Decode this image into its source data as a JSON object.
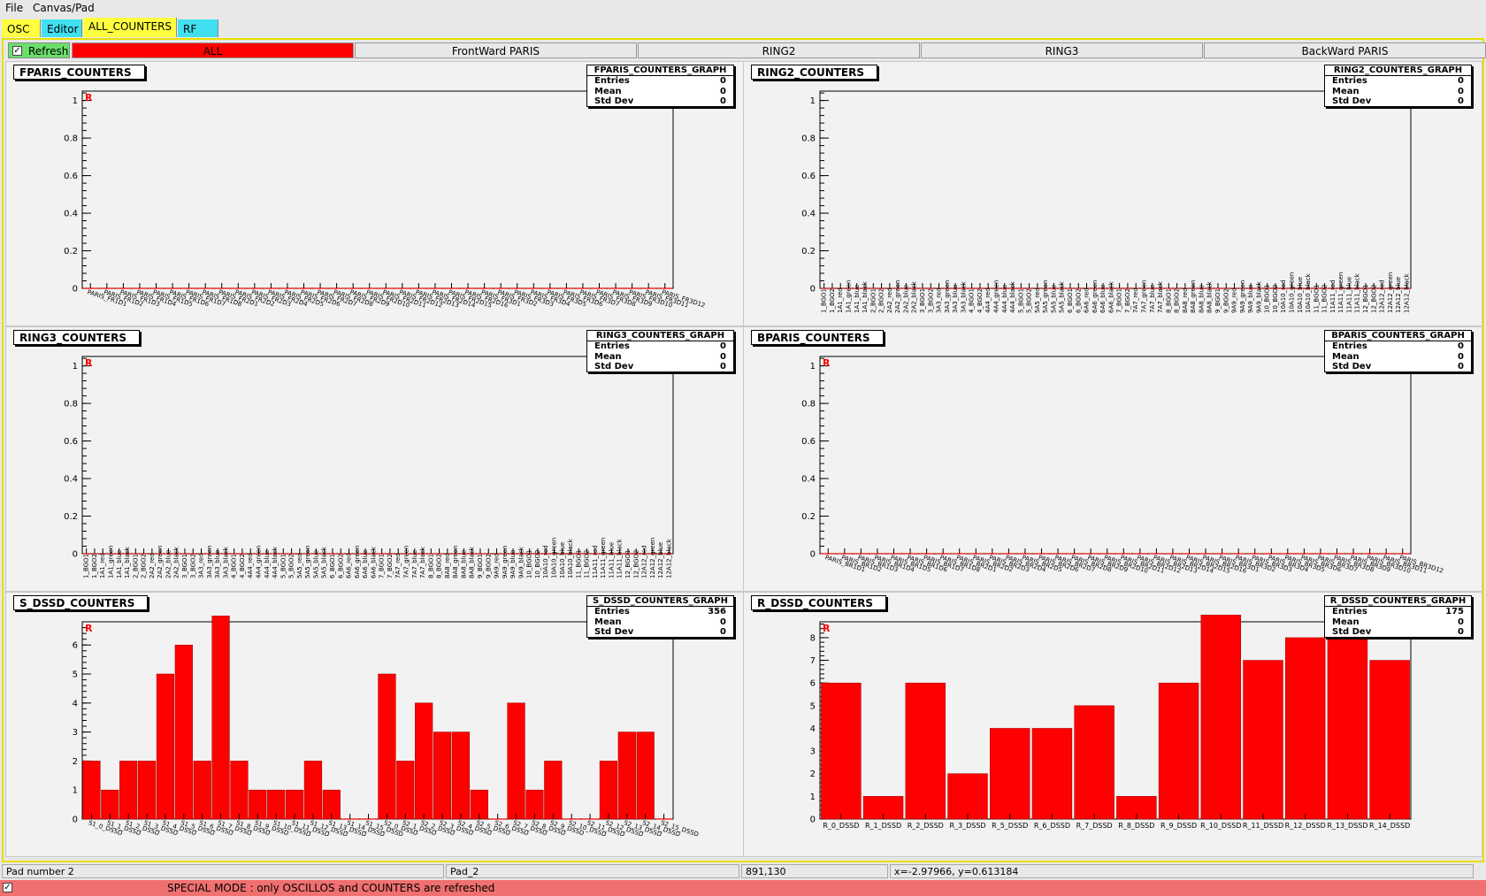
{
  "menu": {
    "file": "File",
    "canvas": "Canvas/Pad"
  },
  "top_tabs": [
    {
      "label": "OSC",
      "color": "#ffff40"
    },
    {
      "label": "Editor",
      "color": "#40e0f0"
    },
    {
      "label": "ALL_COUNTERS",
      "color": "#ffff40"
    },
    {
      "label": "RF",
      "color": "#40e0f0"
    }
  ],
  "refresh": {
    "label": "Refresh",
    "checked": "✓"
  },
  "sub_tabs": [
    "ALL",
    "FrontWard PARIS",
    "RING2",
    "RING3",
    "BackWard PARIS"
  ],
  "status": {
    "pad": "Pad number 2",
    "name": "Pad_2",
    "pixel": "891,130",
    "coords": "x=-2.97966, y=0.613184"
  },
  "special": {
    "checked": "✓",
    "message": "SPECIAL MODE : only OSCILLOS and COUNTERS are refreshed"
  },
  "colors": {
    "bar": "#ff0000",
    "bar_edge": "#b00000",
    "frame": "#e8e000",
    "status_special": "#f07070"
  },
  "stats_labels": {
    "entries": "Entries",
    "mean": "Mean",
    "std": "Std Dev"
  },
  "chart_data": [
    {
      "type": "bar",
      "title": "FPARIS_COUNTERS",
      "stats_name": "FPARIS_COUNTERS_GRAPH",
      "entries": "0",
      "mean": "0",
      "std": "0",
      "ylim": [
        0,
        1.05
      ],
      "yticks": [
        "0",
        "0.2",
        "0.4",
        "0.6",
        "0.8",
        "1"
      ],
      "ytick_values": [
        0,
        0.2,
        0.4,
        0.6,
        0.8,
        1
      ],
      "marker": "R",
      "categories": [
        "PARIS_FR1D1",
        "PARIS_FR1D2",
        "PARIS_FR1D3",
        "PARIS_FR1D4",
        "PARIS_FR1D5",
        "PARIS_FR1D6",
        "PARIS_FR1D7",
        "PARIS_FR1D8",
        "PARIS_FR2D1",
        "PARIS_FR2D2",
        "PARIS_FR2D3",
        "PARIS_FR2D4",
        "PARIS_FR2D5",
        "PARIS_FR2D6",
        "PARIS_FR2D7",
        "PARIS_FR2D8",
        "PARIS_FR2D9",
        "PARIS_FR2D10",
        "PARIS_FR2D11",
        "PARIS_FR2D12",
        "PARIS_FR2D13",
        "PARIS_FR2D14",
        "PARIS_FR2D15",
        "PARIS_FR2D16",
        "PARIS_FR3D1",
        "PARIS_FR3D2",
        "PARIS_FR3D3",
        "PARIS_FR3D4",
        "PARIS_FR3D5",
        "PARIS_FR3D6",
        "PARIS_FR3D7",
        "PARIS_FR3D8",
        "PARIS_FR3D9",
        "PARIS_FR3D10",
        "PARIS_FR3D11",
        "PARIS_FR3D12"
      ],
      "values": [
        0,
        0,
        0,
        0,
        0,
        0,
        0,
        0,
        0,
        0,
        0,
        0,
        0,
        0,
        0,
        0,
        0,
        0,
        0,
        0,
        0,
        0,
        0,
        0,
        0,
        0,
        0,
        0,
        0,
        0,
        0,
        0,
        0,
        0,
        0,
        0
      ]
    },
    {
      "type": "bar",
      "title": "RING2_COUNTERS",
      "stats_name": "RING2_COUNTERS_GRAPH",
      "entries": "0",
      "mean": "0",
      "std": "0",
      "ylim": [
        0,
        1.05
      ],
      "yticks": [
        "0",
        "0.2",
        "0.4",
        "0.6",
        "0.8",
        "1"
      ],
      "ytick_values": [
        0,
        0.2,
        0.4,
        0.6,
        0.8,
        1
      ],
      "marker": "",
      "categories": [
        "1_BGO1",
        "1_BGO2",
        "1A1_red",
        "1A1_green",
        "1A1_blue",
        "1A1_black",
        "2_BGO1",
        "2_BGO2",
        "2A2_red",
        "2A2_green",
        "2A2_blue",
        "2A2_black",
        "3_BGO1",
        "3_BGO2",
        "3A3_red",
        "3A3_green",
        "3A3_blue",
        "3A3_black",
        "4_BGO1",
        "4_BGO2",
        "4A4_red",
        "4A4_green",
        "4A4_blue",
        "4A4_black",
        "5_BGO1",
        "5_BGO2",
        "5A5_red",
        "5A5_green",
        "5A5_blue",
        "5A5_black",
        "6_BGO1",
        "6_BGO2",
        "6A6_red",
        "6A6_green",
        "6A6_blue",
        "6A6_black",
        "7_BGO1",
        "7_BGO2",
        "7A7_red",
        "7A7_green",
        "7A7_blue",
        "7A7_black",
        "8_BGO1",
        "8_BGO2",
        "8A8_red",
        "8A8_green",
        "8A8_blue",
        "8A8_black",
        "9_BGO1",
        "9_BGO2",
        "9A9_red",
        "9A9_green",
        "9A9_blue",
        "9A9_black",
        "10_BGO1",
        "10_BGO2",
        "10A10_red",
        "10A10_green",
        "10A10_blue",
        "10A10_black",
        "11_BGO1",
        "11_BGO2",
        "11A11_red",
        "11A11_green",
        "11A11_blue",
        "11A11_black",
        "12_BGO1",
        "12_BGO2",
        "12A12_red",
        "12A12_green",
        "12A12_blue",
        "12A12_black"
      ],
      "values": [
        0,
        0,
        0,
        0,
        0,
        0,
        0,
        0,
        0,
        0,
        0,
        0,
        0,
        0,
        0,
        0,
        0,
        0,
        0,
        0,
        0,
        0,
        0,
        0,
        0,
        0,
        0,
        0,
        0,
        0,
        0,
        0,
        0,
        0,
        0,
        0,
        0,
        0,
        0,
        0,
        0,
        0,
        0,
        0,
        0,
        0,
        0,
        0,
        0,
        0,
        0,
        0,
        0,
        0,
        0,
        0,
        0,
        0,
        0,
        0,
        0,
        0,
        0,
        0,
        0,
        0,
        0,
        0,
        0,
        0,
        0,
        0
      ]
    },
    {
      "type": "bar",
      "title": "RING3_COUNTERS",
      "stats_name": "RING3_COUNTERS_GRAPH",
      "entries": "0",
      "mean": "0",
      "std": "0",
      "ylim": [
        0,
        1.05
      ],
      "yticks": [
        "0",
        "0.2",
        "0.4",
        "0.6",
        "0.8",
        "1"
      ],
      "ytick_values": [
        0,
        0.2,
        0.4,
        0.6,
        0.8,
        1
      ],
      "marker": "R",
      "categories": [
        "1_BGO1",
        "1_BGO2",
        "1A1_red",
        "1A1_green",
        "1A1_blue",
        "1A1_black",
        "2_BGO1",
        "2_BGO2",
        "2A2_red",
        "2A2_green",
        "2A2_blue",
        "2A2_black",
        "3_BGO1",
        "3_BGO2",
        "3A3_red",
        "3A3_green",
        "3A3_blue",
        "3A3_black",
        "4_BGO1",
        "4_BGO2",
        "4A4_red",
        "4A4_green",
        "4A4_blue",
        "4A4_black",
        "5_BGO1",
        "5_BGO2",
        "5A5_red",
        "5A5_green",
        "5A5_blue",
        "5A5_black",
        "6_BGO1",
        "6_BGO2",
        "6A6_red",
        "6A6_green",
        "6A6_blue",
        "6A6_black",
        "7_BGO1",
        "7_BGO2",
        "7A7_red",
        "7A7_green",
        "7A7_blue",
        "7A7_black",
        "8_BGO1",
        "8_BGO2",
        "8A8_red",
        "8A8_green",
        "8A8_blue",
        "8A8_black",
        "9_BGO1",
        "9_BGO2",
        "9A9_red",
        "9A9_green",
        "9A9_blue",
        "9A9_black",
        "10_BGO1",
        "10_BGO2",
        "10A10_red",
        "10A10_green",
        "10A10_blue",
        "10A10_black",
        "11_BGO1",
        "11_BGO2",
        "11A11_red",
        "11A11_green",
        "11A11_blue",
        "11A11_black",
        "12_BGO1",
        "12_BGO2",
        "12A12_red",
        "12A12_green",
        "12A12_blue",
        "12A12_black"
      ],
      "values": [
        0,
        0,
        0,
        0,
        0,
        0,
        0,
        0,
        0,
        0,
        0,
        0,
        0,
        0,
        0,
        0,
        0,
        0,
        0,
        0,
        0,
        0,
        0,
        0,
        0,
        0,
        0,
        0,
        0,
        0,
        0,
        0,
        0,
        0,
        0,
        0,
        0,
        0,
        0,
        0,
        0,
        0,
        0,
        0,
        0,
        0,
        0,
        0,
        0,
        0,
        0,
        0,
        0,
        0,
        0,
        0,
        0,
        0,
        0,
        0,
        0,
        0,
        0,
        0,
        0,
        0,
        0,
        0,
        0,
        0,
        0,
        0
      ]
    },
    {
      "type": "bar",
      "title": "BPARIS_COUNTERS",
      "stats_name": "BPARIS_COUNTERS_GRAPH",
      "entries": "0",
      "mean": "0",
      "std": "0",
      "ylim": [
        0,
        1.05
      ],
      "yticks": [
        "0",
        "0.2",
        "0.4",
        "0.6",
        "0.8",
        "1"
      ],
      "ytick_values": [
        0,
        0.2,
        0.4,
        0.6,
        0.8,
        1
      ],
      "marker": "R",
      "categories": [
        "PARIS_BR1D1",
        "PARIS_BR1D2",
        "PARIS_BR1D3",
        "PARIS_BR1D4",
        "PARIS_BR1D5",
        "PARIS_BR1D6",
        "PARIS_BR1D7",
        "PARIS_BR1D8",
        "PARIS_BR2D1",
        "PARIS_BR2D2",
        "PARIS_BR2D3",
        "PARIS_BR2D4",
        "PARIS_BR2D5",
        "PARIS_BR2D6",
        "PARIS_BR2D7",
        "PARIS_BR2D8",
        "PARIS_BR2D9",
        "PARIS_BR2D10",
        "PARIS_BR2D11",
        "PARIS_BR2D12",
        "PARIS_BR2D13",
        "PARIS_BR2D14",
        "PARIS_BR2D15",
        "PARIS_BR2D16",
        "PARIS_BR3D1",
        "PARIS_BR3D2",
        "PARIS_BR3D3",
        "PARIS_BR3D4",
        "PARIS_BR3D5",
        "PARIS_BR3D6",
        "PARIS_BR3D7",
        "PARIS_BR3D8",
        "PARIS_BR3D9",
        "PARIS_BR3D10",
        "PARIS_BR3D11",
        "PARIS_BR3D12"
      ],
      "values": [
        0,
        0,
        0,
        0,
        0,
        0,
        0,
        0,
        0,
        0,
        0,
        0,
        0,
        0,
        0,
        0,
        0,
        0,
        0,
        0,
        0,
        0,
        0,
        0,
        0,
        0,
        0,
        0,
        0,
        0,
        0,
        0,
        0,
        0,
        0,
        0
      ]
    },
    {
      "type": "bar",
      "title": "S_DSSD_COUNTERS",
      "stats_name": "S_DSSD_COUNTERS_GRAPH",
      "entries": "356",
      "mean": "0",
      "std": "0",
      "ylim": [
        0,
        6.8
      ],
      "yticks": [
        "0",
        "1",
        "2",
        "3",
        "4",
        "5",
        "6"
      ],
      "ytick_values": [
        0,
        1,
        2,
        3,
        4,
        5,
        6
      ],
      "marker": "R",
      "categories": [
        "S1_0_DSSD",
        "S1_1_DSSD",
        "S1_2_DSSD",
        "S1_3_DSSD",
        "S1_4_DSSD",
        "S1_5_DSSD",
        "S1_6_DSSD",
        "S1_7_DSSD",
        "S1_8_DSSD",
        "S1_9_DSSD",
        "S1_10_DSSD",
        "S1_11_DSSD",
        "S1_12_DSSD",
        "S1_13_DSSD",
        "S1_14_DSSD",
        "S1_15_DSSD",
        "S2_0_DSSD",
        "S2_1_DSSD",
        "S2_2_DSSD",
        "S2_3_DSSD",
        "S2_4_DSSD",
        "S2_5_DSSD",
        "S2_6_DSSD",
        "S2_7_DSSD",
        "S2_8_DSSD",
        "S2_9_DSSD",
        "S2_10_DSSD",
        "S2_11_DSSD",
        "S2_12_DSSD",
        "S2_13_DSSD",
        "S2_14_DSSD",
        "S2_15_DSSD"
      ],
      "values": [
        2,
        1,
        2,
        2,
        5,
        6,
        2,
        7,
        2,
        1,
        1,
        1,
        2,
        1,
        0,
        0,
        5,
        2,
        4,
        3,
        3,
        1,
        0,
        4,
        1,
        2,
        0,
        0,
        2,
        3,
        3,
        0
      ]
    },
    {
      "type": "bar",
      "title": "R_DSSD_COUNTERS",
      "stats_name": "R_DSSD_COUNTERS_GRAPH",
      "entries": "175",
      "mean": "0",
      "std": "0",
      "ylim": [
        0,
        8.7
      ],
      "yticks": [
        "0",
        "1",
        "2",
        "3",
        "4",
        "5",
        "6",
        "7",
        "8"
      ],
      "ytick_values": [
        0,
        1,
        2,
        3,
        4,
        5,
        6,
        7,
        8
      ],
      "marker": "R",
      "categories": [
        "R_0_DSSD",
        "R_1_DSSD",
        "R_2_DSSD",
        "R_3_DSSD",
        "R_5_DSSD",
        "R_6_DSSD",
        "R_7_DSSD",
        "R_8_DSSD",
        "R_9_DSSD",
        "R_10_DSSD",
        "R_11_DSSD",
        "R_12_DSSD",
        "R_13_DSSD",
        "R_14_DSSD"
      ],
      "values": [
        6,
        1,
        6,
        2,
        4,
        4,
        5,
        1,
        6,
        9,
        7,
        8,
        8,
        7
      ]
    }
  ]
}
